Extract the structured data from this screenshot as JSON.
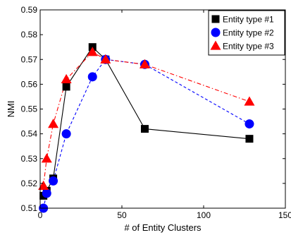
{
  "chart_data": {
    "type": "line",
    "xlabel": "# of Entity Clusters",
    "ylabel": "NMI",
    "xlim": [
      0,
      150
    ],
    "ylim": [
      0.51,
      0.59
    ],
    "xticks": [
      0,
      50,
      100,
      150
    ],
    "yticks": [
      0.51,
      0.52,
      0.53,
      0.54,
      0.55,
      0.56,
      0.57,
      0.58,
      0.59
    ],
    "xtick_labels": [
      "0",
      "50",
      "100",
      "150"
    ],
    "ytick_labels": [
      "0.51",
      "0.52",
      "0.53",
      "0.54",
      "0.55",
      "0.56",
      "0.57",
      "0.58",
      "0.59"
    ],
    "grid": false,
    "legend_position": "top-right",
    "series": [
      {
        "name": "Entity type #1",
        "color": "#000000",
        "marker": "square",
        "line_style": "solid",
        "x": [
          2,
          4,
          8,
          16,
          32,
          40,
          64,
          128
        ],
        "y": [
          0.515,
          0.517,
          0.522,
          0.559,
          0.575,
          0.57,
          0.542,
          0.538
        ]
      },
      {
        "name": "Entity type #2",
        "color": "#0000ff",
        "marker": "circle",
        "line_style": "dashed",
        "x": [
          2,
          4,
          8,
          16,
          32,
          40,
          64,
          128
        ],
        "y": [
          0.51,
          0.516,
          0.521,
          0.54,
          0.563,
          0.57,
          0.568,
          0.544
        ]
      },
      {
        "name": "Entity type #3",
        "color": "#ff0000",
        "marker": "triangle",
        "line_style": "dashdot",
        "x": [
          2,
          4,
          8,
          16,
          32,
          40,
          64,
          128
        ],
        "y": [
          0.519,
          0.53,
          0.544,
          0.562,
          0.573,
          0.57,
          0.568,
          0.553
        ]
      }
    ]
  }
}
